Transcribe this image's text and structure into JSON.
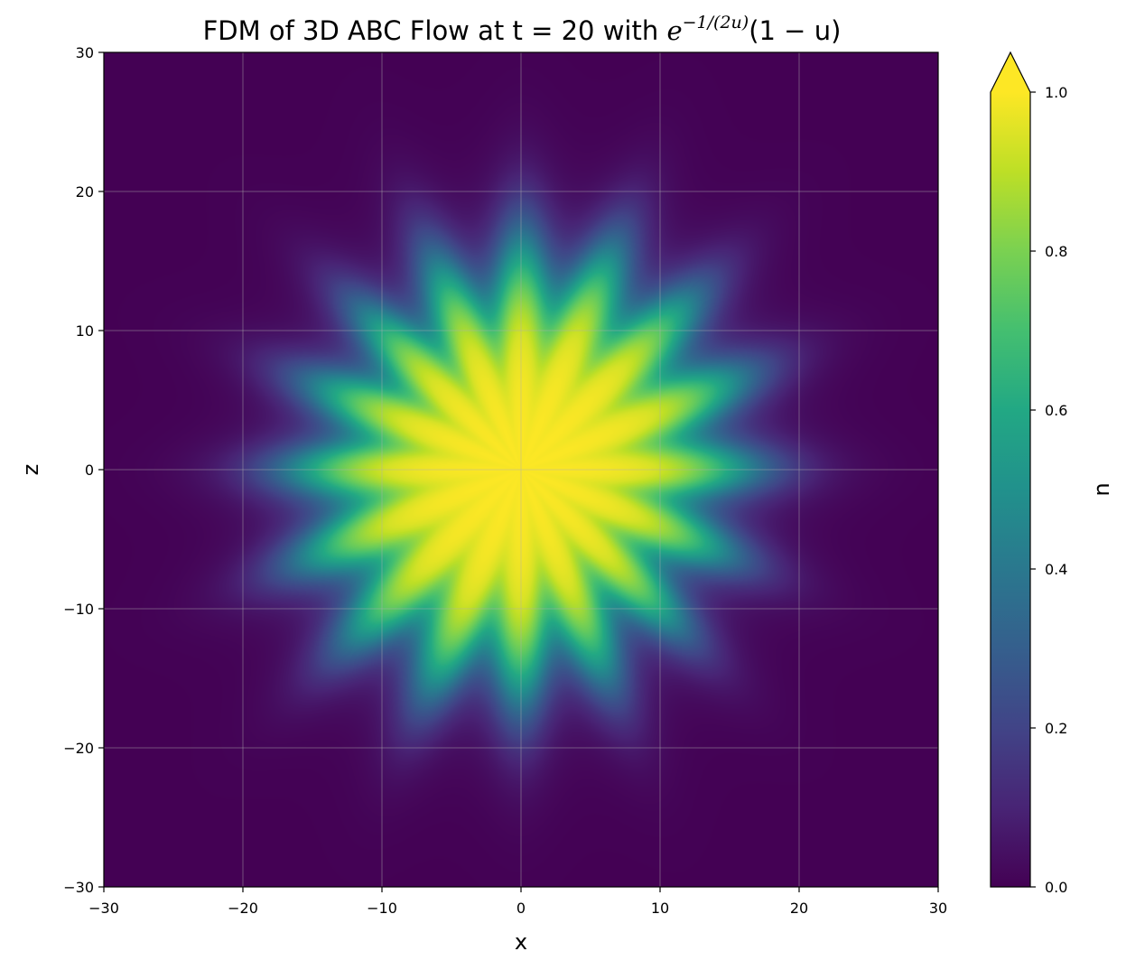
{
  "chart_data": {
    "type": "heatmap",
    "title": {
      "prefix": "FDM of 3D ABC Flow at t = 20 with ",
      "base": "e",
      "exponent": "−1/(2u)",
      "suffix": "(1 − u)"
    },
    "xlabel": "x",
    "ylabel": "z",
    "xlim": [
      -30,
      30
    ],
    "ylim": [
      -30,
      30
    ],
    "xticks": [
      -30,
      -20,
      -10,
      0,
      10,
      20,
      30
    ],
    "yticks": [
      -30,
      -20,
      -10,
      0,
      10,
      20,
      30
    ],
    "xtick_labels": [
      "−30",
      "−20",
      "−10",
      "0",
      "10",
      "20",
      "30"
    ],
    "ytick_labels": [
      "−30",
      "−20",
      "−10",
      "0",
      "10",
      "20",
      "30"
    ],
    "grid": true,
    "colormap": "viridis",
    "colorbar": {
      "label": "u",
      "range": [
        0.0,
        1.0
      ],
      "ticks": [
        0.0,
        0.2,
        0.4,
        0.6,
        0.8,
        1.0
      ],
      "tick_labels": [
        "0.0",
        "0.2",
        "0.4",
        "0.6",
        "0.8",
        "1.0"
      ],
      "extend": "max"
    },
    "field": {
      "shape": "wavy-disk",
      "center": [
        0,
        0
      ],
      "core_value": 1.0,
      "outside_value": 0.0,
      "mean_radius": 20,
      "lobes": 16,
      "lobe_amplitude": 1.7
    }
  }
}
